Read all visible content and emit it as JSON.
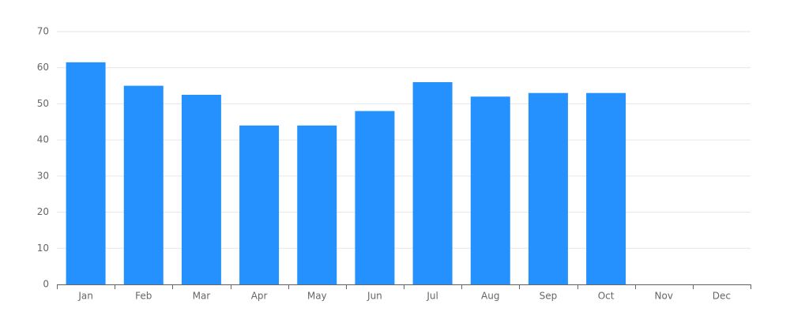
{
  "chart_data": {
    "type": "bar",
    "categories": [
      "Jan",
      "Feb",
      "Mar",
      "Apr",
      "May",
      "Jun",
      "Jul",
      "Aug",
      "Sep",
      "Oct",
      "Nov",
      "Dec"
    ],
    "values": [
      61.5,
      55,
      52.5,
      44,
      44,
      48,
      56,
      52,
      53,
      53,
      null,
      null
    ],
    "color": "#2491ff",
    "ylim": [
      0,
      70
    ],
    "yticks": [
      0,
      10,
      20,
      30,
      40,
      50,
      60,
      70
    ],
    "grid": true
  }
}
